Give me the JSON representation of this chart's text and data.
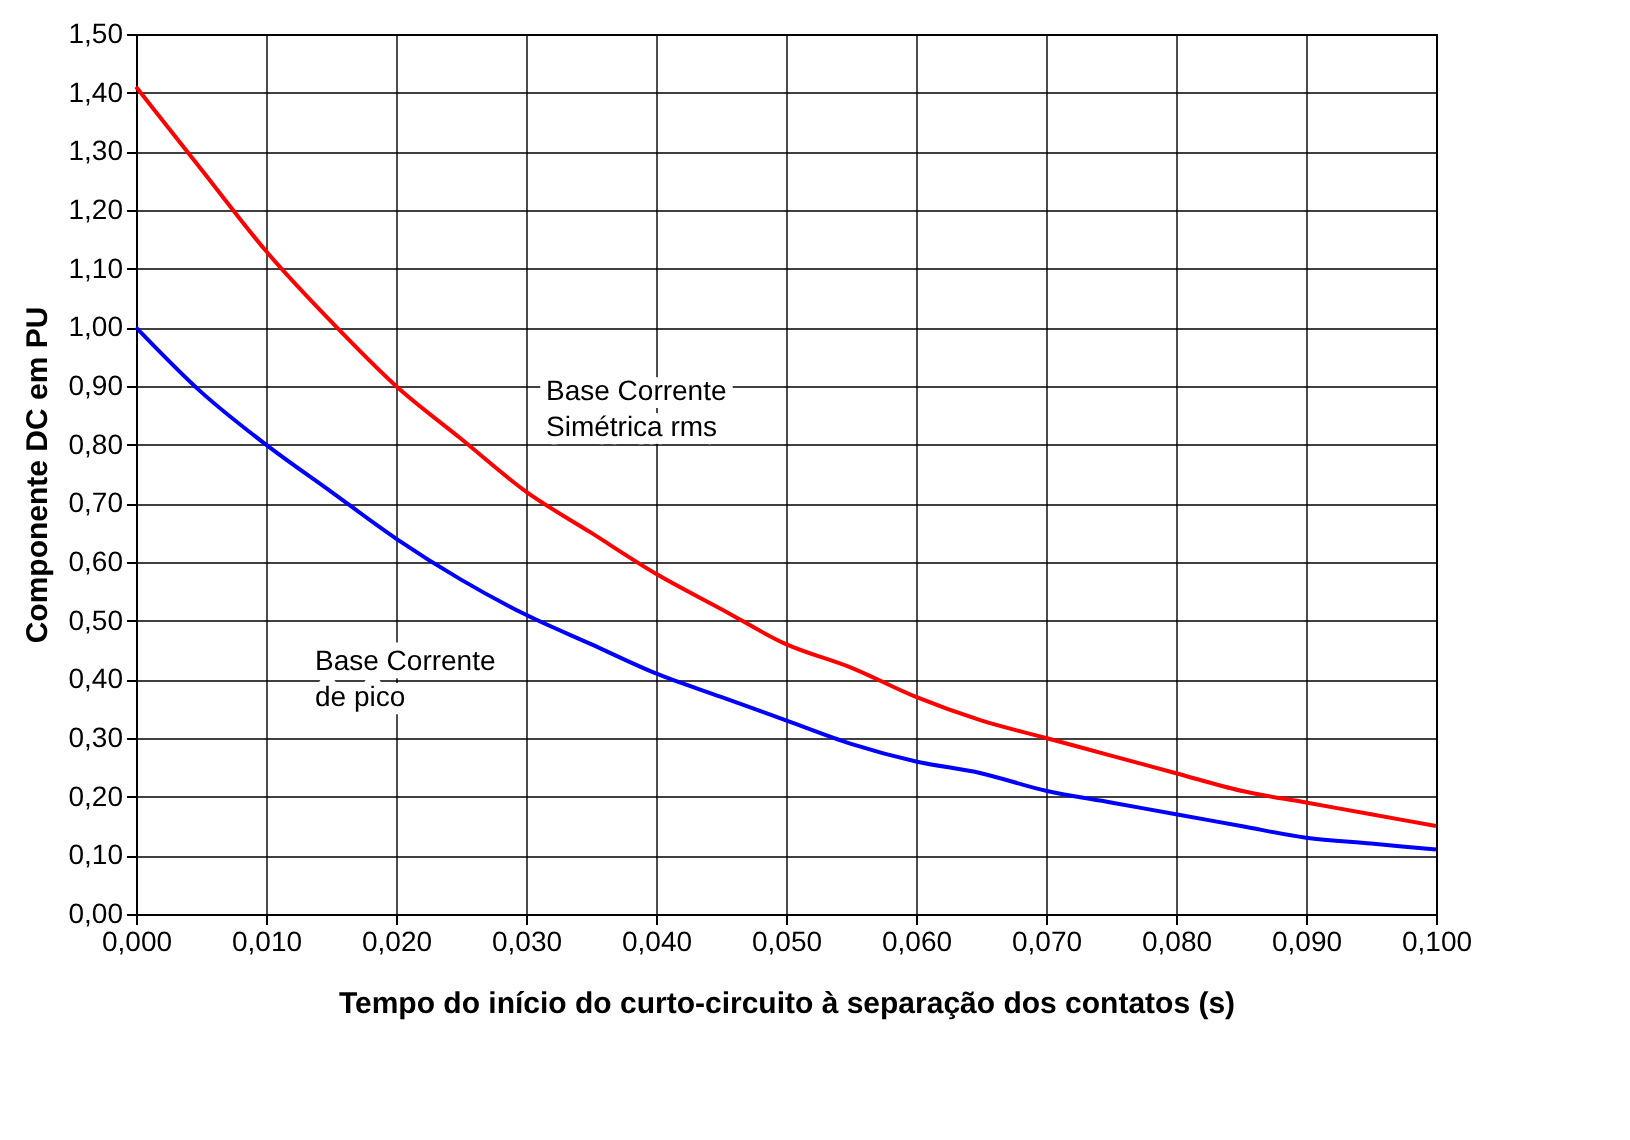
{
  "chart_data": {
    "type": "line",
    "xlabel": "Tempo do início do curto-circuito à separação dos contatos (s)",
    "ylabel": "Componente DC em PU",
    "x": [
      0,
      0.005,
      0.01,
      0.015,
      0.02,
      0.025,
      0.03,
      0.035,
      0.04,
      0.045,
      0.05,
      0.055,
      0.06,
      0.065,
      0.07,
      0.075,
      0.08,
      0.085,
      0.09,
      0.095,
      0.1
    ],
    "series": [
      {
        "name": "Base Corrente Simétrica rms",
        "color": "#ff0000",
        "values": [
          1.41,
          1.27,
          1.13,
          1.01,
          0.9,
          0.81,
          0.72,
          0.65,
          0.58,
          0.52,
          0.46,
          0.42,
          0.37,
          0.33,
          0.3,
          0.27,
          0.24,
          0.21,
          0.19,
          0.17,
          0.15
        ]
      },
      {
        "name": "Base Corrente de pico",
        "color": "#0000ff",
        "values": [
          1.0,
          0.89,
          0.8,
          0.72,
          0.64,
          0.57,
          0.51,
          0.46,
          0.41,
          0.37,
          0.33,
          0.29,
          0.26,
          0.24,
          0.21,
          0.19,
          0.17,
          0.15,
          0.13,
          0.12,
          0.11
        ]
      }
    ],
    "xlim": [
      0,
      0.1
    ],
    "xticks": [
      {
        "value": 0,
        "label": "0,000"
      },
      {
        "value": 0.01,
        "label": "0,010"
      },
      {
        "value": 0.02,
        "label": "0,020"
      },
      {
        "value": 0.03,
        "label": "0,030"
      },
      {
        "value": 0.04,
        "label": "0,040"
      },
      {
        "value": 0.05,
        "label": "0,050"
      },
      {
        "value": 0.06,
        "label": "0,060"
      },
      {
        "value": 0.07,
        "label": "0,070"
      },
      {
        "value": 0.08,
        "label": "0,080"
      },
      {
        "value": 0.09,
        "label": "0,090"
      },
      {
        "value": 0.1,
        "label": "0,100"
      }
    ],
    "ylim": [
      0,
      1.5
    ],
    "yticks": [
      {
        "value": 0,
        "label": "0,00"
      },
      {
        "value": 0.1,
        "label": "0,10"
      },
      {
        "value": 0.2,
        "label": "0,20"
      },
      {
        "value": 0.3,
        "label": "0,30"
      },
      {
        "value": 0.4,
        "label": "0,40"
      },
      {
        "value": 0.5,
        "label": "0,50"
      },
      {
        "value": 0.6,
        "label": "0,60"
      },
      {
        "value": 0.7,
        "label": "0,70"
      },
      {
        "value": 0.8,
        "label": "0,80"
      },
      {
        "value": 0.9,
        "label": "0,90"
      },
      {
        "value": 1.0,
        "label": "1,00"
      },
      {
        "value": 1.1,
        "label": "1,10"
      },
      {
        "value": 1.2,
        "label": "1,20"
      },
      {
        "value": 1.3,
        "label": "1,30"
      },
      {
        "value": 1.4,
        "label": "1,40"
      },
      {
        "value": 1.5,
        "label": "1,50"
      }
    ],
    "grid": true,
    "legend": false,
    "marker": "none",
    "line_style": "solid"
  }
}
